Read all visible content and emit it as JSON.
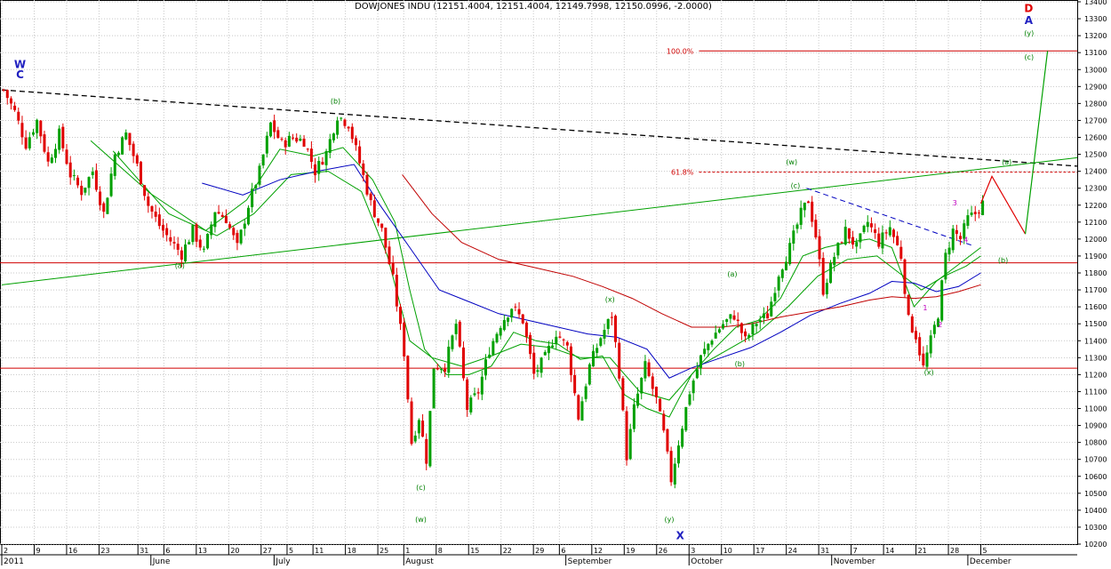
{
  "chart_data": {
    "type": "candlestick",
    "title": "DOWJONES INDU (12151.4004, 12151.4004, 12149.7998, 12150.0996, -2.0000)",
    "ylim": [
      10200,
      13400
    ],
    "y_ticks": [
      10200,
      10300,
      10400,
      10500,
      10600,
      10700,
      10800,
      10900,
      11000,
      11100,
      11200,
      11300,
      11400,
      11500,
      11600,
      11700,
      11800,
      11900,
      12000,
      12100,
      12200,
      12300,
      12400,
      12500,
      12600,
      12700,
      12800,
      12900,
      13000,
      13100,
      13200,
      13300,
      13400
    ],
    "day_ticks": [
      "2",
      "9",
      "16",
      "23",
      "31",
      "6",
      "13",
      "20",
      "27",
      "5",
      "11",
      "18",
      "25",
      "1",
      "8",
      "15",
      "22",
      "29",
      "6",
      "12",
      "19",
      "26",
      "3",
      "10",
      "17",
      "24",
      "31",
      "7",
      "14",
      "21",
      "28",
      "5"
    ],
    "months": [
      "2011",
      "June",
      "July",
      "August",
      "September",
      "October",
      "November",
      "December"
    ],
    "fib_levels": [
      {
        "label": "100.0%",
        "value": 13110
      },
      {
        "label": "61.8%",
        "value": 12395
      }
    ],
    "horizontal_lines": [
      11860,
      11238
    ],
    "price_path": [
      [
        0,
        12880
      ],
      [
        3,
        12750
      ],
      [
        6,
        12560
      ],
      [
        9,
        12700
      ],
      [
        12,
        12450
      ],
      [
        15,
        12620
      ],
      [
        18,
        12380
      ],
      [
        21,
        12280
      ],
      [
        24,
        12400
      ],
      [
        27,
        12150
      ],
      [
        30,
        12500
      ],
      [
        33,
        12620
      ],
      [
        36,
        12430
      ],
      [
        39,
        12200
      ],
      [
        42,
        12080
      ],
      [
        45,
        11990
      ],
      [
        48,
        11910
      ],
      [
        51,
        12050
      ],
      [
        54,
        11920
      ],
      [
        57,
        12170
      ],
      [
        60,
        12120
      ],
      [
        63,
        11950
      ],
      [
        66,
        12200
      ],
      [
        69,
        12400
      ],
      [
        72,
        12680
      ],
      [
        75,
        12560
      ],
      [
        78,
        12600
      ],
      [
        81,
        12580
      ],
      [
        84,
        12400
      ],
      [
        87,
        12510
      ],
      [
        90,
        12730
      ],
      [
        93,
        12680
      ],
      [
        96,
        12450
      ],
      [
        99,
        12210
      ],
      [
        102,
        12050
      ],
      [
        105,
        11760
      ],
      [
        108,
        11330
      ],
      [
        110,
        10800
      ],
      [
        112,
        10950
      ],
      [
        114,
        10700
      ],
      [
        116,
        11250
      ],
      [
        119,
        11250
      ],
      [
        122,
        11500
      ],
      [
        125,
        11000
      ],
      [
        128,
        11100
      ],
      [
        131,
        11350
      ],
      [
        134,
        11500
      ],
      [
        137,
        11600
      ],
      [
        140,
        11520
      ],
      [
        143,
        11200
      ],
      [
        146,
        11300
      ],
      [
        149,
        11450
      ],
      [
        152,
        11360
      ],
      [
        155,
        10950
      ],
      [
        158,
        11250
      ],
      [
        161,
        11420
      ],
      [
        164,
        11550
      ],
      [
        166,
        11210
      ],
      [
        168,
        10720
      ],
      [
        170,
        11000
      ],
      [
        173,
        11250
      ],
      [
        176,
        11050
      ],
      [
        178,
        10850
      ],
      [
        180,
        10580
      ],
      [
        182,
        10800
      ],
      [
        185,
        11100
      ],
      [
        188,
        11300
      ],
      [
        191,
        11420
      ],
      [
        194,
        11500
      ],
      [
        197,
        11550
      ],
      [
        200,
        11400
      ],
      [
        203,
        11510
      ],
      [
        206,
        11550
      ],
      [
        209,
        11800
      ],
      [
        212,
        11950
      ],
      [
        215,
        12150
      ],
      [
        217,
        12230
      ],
      [
        219,
        12020
      ],
      [
        221,
        11700
      ],
      [
        224,
        11900
      ],
      [
        227,
        12050
      ],
      [
        230,
        11950
      ],
      [
        233,
        12100
      ],
      [
        236,
        11980
      ],
      [
        239,
        12070
      ],
      [
        242,
        11900
      ],
      [
        244,
        11520
      ],
      [
        246,
        11430
      ],
      [
        248,
        11240
      ],
      [
        250,
        11400
      ],
      [
        252,
        11560
      ],
      [
        254,
        11900
      ],
      [
        256,
        12050
      ],
      [
        258,
        12000
      ],
      [
        260,
        12120
      ],
      [
        262,
        12150
      ],
      [
        264,
        12210
      ]
    ],
    "moving_averages": [
      {
        "name": "MA-green-fast",
        "color": "#00a000",
        "points": [
          [
            24,
            12580
          ],
          [
            40,
            12270
          ],
          [
            55,
            12050
          ],
          [
            66,
            12230
          ],
          [
            75,
            12530
          ],
          [
            84,
            12490
          ],
          [
            92,
            12540
          ],
          [
            100,
            12350
          ],
          [
            106,
            12100
          ],
          [
            110,
            11700
          ],
          [
            114,
            11350
          ],
          [
            120,
            11200
          ],
          [
            126,
            11200
          ],
          [
            132,
            11250
          ],
          [
            138,
            11450
          ],
          [
            144,
            11400
          ],
          [
            150,
            11380
          ],
          [
            156,
            11290
          ],
          [
            162,
            11310
          ],
          [
            168,
            11080
          ],
          [
            174,
            11000
          ],
          [
            180,
            10950
          ],
          [
            186,
            11200
          ],
          [
            192,
            11350
          ],
          [
            198,
            11480
          ],
          [
            204,
            11520
          ],
          [
            210,
            11650
          ],
          [
            216,
            11900
          ],
          [
            222,
            11950
          ],
          [
            228,
            11980
          ],
          [
            234,
            12000
          ],
          [
            240,
            11950
          ],
          [
            246,
            11600
          ],
          [
            252,
            11750
          ],
          [
            258,
            11850
          ],
          [
            264,
            11950
          ]
        ]
      },
      {
        "name": "MA-green-mid",
        "color": "#00a000",
        "points": [
          [
            30,
            12520
          ],
          [
            45,
            12150
          ],
          [
            58,
            12020
          ],
          [
            68,
            12150
          ],
          [
            78,
            12380
          ],
          [
            88,
            12400
          ],
          [
            97,
            12280
          ],
          [
            104,
            11900
          ],
          [
            110,
            11400
          ],
          [
            116,
            11300
          ],
          [
            124,
            11250
          ],
          [
            132,
            11310
          ],
          [
            140,
            11380
          ],
          [
            148,
            11360
          ],
          [
            156,
            11300
          ],
          [
            164,
            11300
          ],
          [
            172,
            11100
          ],
          [
            180,
            11050
          ],
          [
            188,
            11250
          ],
          [
            196,
            11350
          ],
          [
            204,
            11450
          ],
          [
            212,
            11600
          ],
          [
            220,
            11780
          ],
          [
            228,
            11880
          ],
          [
            236,
            11900
          ],
          [
            242,
            11800
          ],
          [
            248,
            11700
          ],
          [
            254,
            11780
          ],
          [
            260,
            11840
          ],
          [
            264,
            11900
          ]
        ]
      },
      {
        "name": "MA-blue",
        "color": "#0000c0",
        "points": [
          [
            54,
            12330
          ],
          [
            65,
            12260
          ],
          [
            75,
            12350
          ],
          [
            85,
            12400
          ],
          [
            95,
            12440
          ],
          [
            102,
            12200
          ],
          [
            110,
            11950
          ],
          [
            118,
            11700
          ],
          [
            126,
            11630
          ],
          [
            134,
            11560
          ],
          [
            142,
            11520
          ],
          [
            150,
            11480
          ],
          [
            158,
            11440
          ],
          [
            166,
            11420
          ],
          [
            174,
            11350
          ],
          [
            180,
            11180
          ],
          [
            186,
            11240
          ],
          [
            194,
            11300
          ],
          [
            202,
            11360
          ],
          [
            210,
            11450
          ],
          [
            218,
            11550
          ],
          [
            226,
            11620
          ],
          [
            234,
            11680
          ],
          [
            240,
            11750
          ],
          [
            246,
            11740
          ],
          [
            252,
            11690
          ],
          [
            258,
            11720
          ],
          [
            264,
            11800
          ]
        ]
      },
      {
        "name": "MA-red",
        "color": "#c00000",
        "points": [
          [
            108,
            12380
          ],
          [
            116,
            12150
          ],
          [
            124,
            11980
          ],
          [
            134,
            11880
          ],
          [
            144,
            11830
          ],
          [
            154,
            11780
          ],
          [
            162,
            11720
          ],
          [
            170,
            11650
          ],
          [
            178,
            11560
          ],
          [
            186,
            11480
          ],
          [
            194,
            11480
          ],
          [
            202,
            11500
          ],
          [
            210,
            11540
          ],
          [
            218,
            11570
          ],
          [
            226,
            11600
          ],
          [
            234,
            11640
          ],
          [
            240,
            11660
          ],
          [
            246,
            11650
          ],
          [
            252,
            11660
          ],
          [
            258,
            11690
          ],
          [
            264,
            11730
          ]
        ]
      }
    ],
    "trendlines": [
      {
        "name": "black-dashed-resistance",
        "color": "#000000",
        "dash": true,
        "points": [
          [
            0,
            12880
          ],
          [
            290,
            12430
          ]
        ]
      },
      {
        "name": "green-rising-support",
        "color": "#00a000",
        "dash": false,
        "points": [
          [
            0,
            11730
          ],
          [
            290,
            12480
          ]
        ]
      },
      {
        "name": "blue-dashed-channel",
        "color": "#0000c0",
        "dash": true,
        "points": [
          [
            217,
            12300
          ],
          [
            262,
            11960
          ]
        ]
      }
    ],
    "projection": {
      "red_leg": [
        [
          264,
          12210
        ],
        [
          267,
          12370
        ],
        [
          276,
          12030
        ]
      ],
      "green_leg": [
        [
          276,
          12030
        ],
        [
          282,
          13110
        ]
      ]
    },
    "wave_labels": [
      {
        "text": "(b)",
        "x": 90,
        "y": 12800,
        "color": "#008000"
      },
      {
        "text": "(a)",
        "x": 48,
        "y": 11830,
        "color": "#008000"
      },
      {
        "text": "(c)",
        "x": 113,
        "y": 10520,
        "color": "#008000"
      },
      {
        "text": "(w)",
        "x": 113,
        "y": 10330,
        "color": "#008000"
      },
      {
        "text": "(x)",
        "x": 164,
        "y": 11630,
        "color": "#008000"
      },
      {
        "text": "(y)",
        "x": 180,
        "y": 10330,
        "color": "#008000"
      },
      {
        "text": "(a)",
        "x": 197,
        "y": 11780,
        "color": "#008000"
      },
      {
        "text": "(b)",
        "x": 199,
        "y": 11250,
        "color": "#008000"
      },
      {
        "text": "(w)",
        "x": 213,
        "y": 12440,
        "color": "#008000"
      },
      {
        "text": "(c)",
        "x": 214,
        "y": 12300,
        "color": "#008000"
      },
      {
        "text": "(x)",
        "x": 250,
        "y": 11200,
        "color": "#008000"
      },
      {
        "text": "(a)",
        "x": 271,
        "y": 12440,
        "color": "#008000"
      },
      {
        "text": "(b)",
        "x": 270,
        "y": 11860,
        "color": "#008000"
      },
      {
        "text": "(y)",
        "x": 277,
        "y": 13200,
        "color": "#008000"
      },
      {
        "text": "(c)",
        "x": 277,
        "y": 13060,
        "color": "#008000"
      },
      {
        "text": "1",
        "x": 249,
        "y": 11580,
        "color": "#c000c0"
      },
      {
        "text": "2",
        "x": 253,
        "y": 11480,
        "color": "#c000c0"
      },
      {
        "text": "3",
        "x": 257,
        "y": 12200,
        "color": "#c000c0"
      },
      {
        "text": "4",
        "x": 260,
        "y": 11980,
        "color": "#c000c0"
      }
    ],
    "big_labels": [
      {
        "text": "W",
        "x": 3,
        "y": 13010,
        "color": "#2020c0"
      },
      {
        "text": "C",
        "x": 3,
        "y": 12950,
        "color": "#2020c0"
      },
      {
        "text": "X",
        "x": 181,
        "y": 10230,
        "color": "#2020c0"
      },
      {
        "text": "D",
        "x": 275,
        "y": 13340,
        "color": "#e00000"
      },
      {
        "text": "A",
        "x": 275,
        "y": 13270,
        "color": "#2020c0"
      }
    ]
  }
}
